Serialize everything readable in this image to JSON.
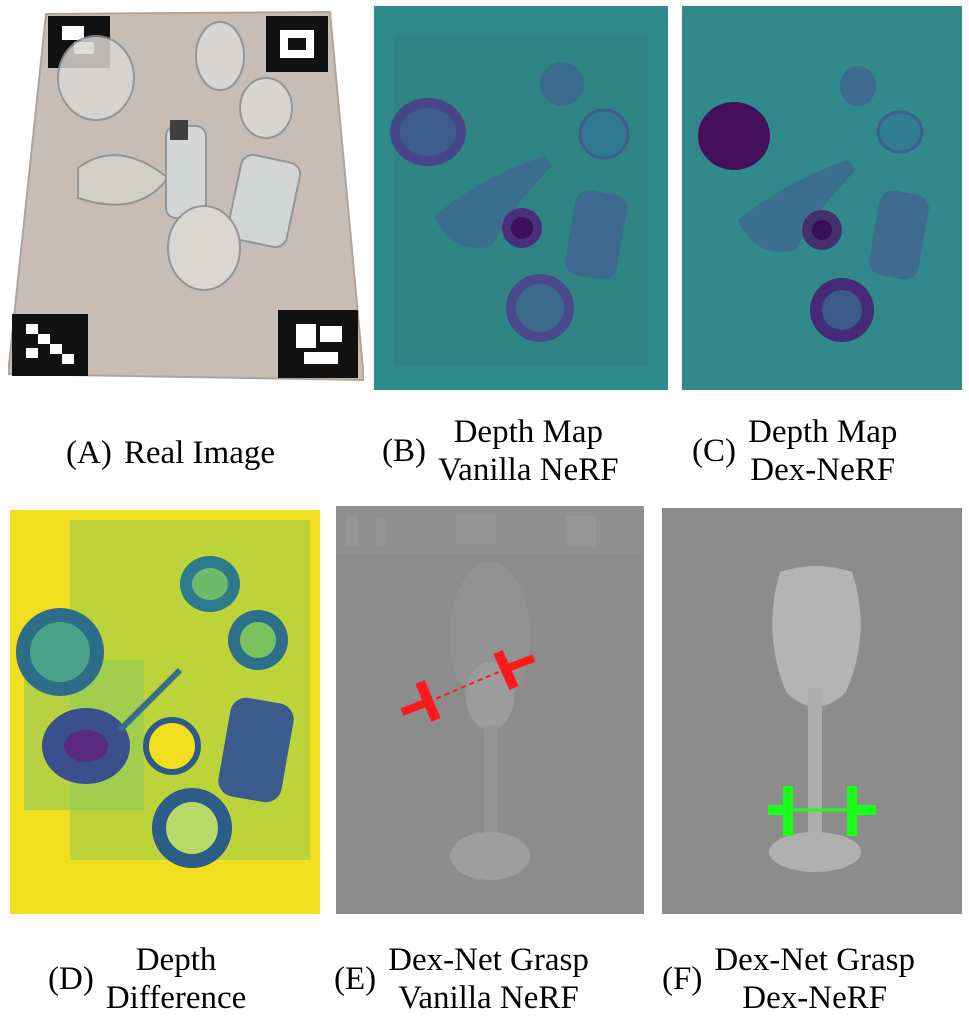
{
  "panels": [
    {
      "letter": "(A)",
      "lines": [
        "Real Image"
      ],
      "kind": "real-image"
    },
    {
      "letter": "(B)",
      "lines": [
        "Depth Map",
        "Vanilla NeRF"
      ],
      "kind": "depth-map"
    },
    {
      "letter": "(C)",
      "lines": [
        "Depth Map",
        "Dex-NeRF"
      ],
      "kind": "depth-map"
    },
    {
      "letter": "(D)",
      "lines": [
        "Depth",
        "Difference"
      ],
      "kind": "depth-difference"
    },
    {
      "letter": "(E)",
      "lines": [
        "Dex-Net Grasp",
        "Vanilla NeRF"
      ],
      "kind": "grasp-render"
    },
    {
      "letter": "(F)",
      "lines": [
        "Dex-Net Grasp",
        "Dex-NeRF"
      ],
      "kind": "grasp-render"
    }
  ],
  "colors": {
    "depth_background": "#2f8a8c",
    "depth_objects": "#4b3b8a",
    "difference_background": "#f1df1f",
    "grasp_background": "#8c8c8c",
    "grasp_failed": "#ff1a1a",
    "grasp_success": "#1aff1a"
  }
}
